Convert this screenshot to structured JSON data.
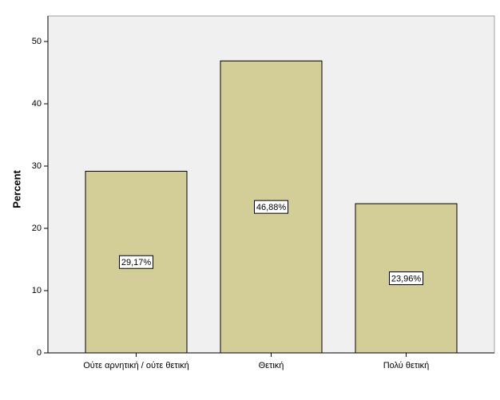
{
  "chart_data": {
    "type": "bar",
    "y_label": "Percent",
    "categories": [
      "Ούτε αρνητική / ούτε θετική",
      "Θετική",
      "Πολύ θετική"
    ],
    "values": [
      29.17,
      46.88,
      23.96
    ],
    "value_labels": [
      "29,17%",
      "46,88%",
      "23,96%"
    ],
    "color": "#d3ce97",
    "ylim": [
      0,
      54.1
    ],
    "yticks": [
      0,
      10,
      20,
      30,
      40,
      50
    ]
  }
}
